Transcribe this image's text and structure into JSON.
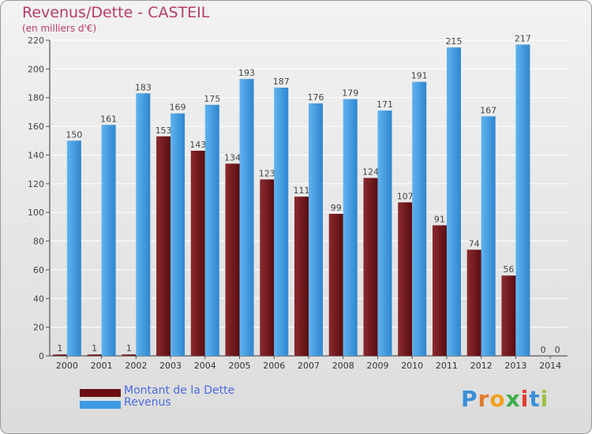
{
  "header": {
    "title": "Revenus/Dette - CASTEIL",
    "subtitle": "(en milliers d'€)"
  },
  "chart_data": {
    "type": "bar",
    "categories": [
      "2000",
      "2001",
      "2002",
      "2003",
      "2004",
      "2005",
      "2006",
      "2007",
      "2008",
      "2009",
      "2010",
      "2011",
      "2012",
      "2013",
      "2014"
    ],
    "series": [
      {
        "name": "Montant de la Dette",
        "values": [
          1,
          1,
          1,
          153,
          143,
          134,
          123,
          111,
          99,
          124,
          107,
          91,
          74,
          56,
          0
        ],
        "color": "#7a1f24"
      },
      {
        "name": "Revenus",
        "values": [
          150,
          161,
          183,
          169,
          175,
          193,
          187,
          176,
          179,
          171,
          191,
          215,
          167,
          217,
          0
        ],
        "color": "#4da6e8"
      }
    ],
    "ylim": [
      0,
      220
    ],
    "yticks": [
      0,
      20,
      40,
      60,
      80,
      100,
      120,
      140,
      160,
      180,
      200,
      220
    ],
    "grid": true,
    "legend_position": "bottom-left"
  },
  "legend": {
    "items": [
      {
        "label": "Montant de la Dette",
        "color": "#6b0f12"
      },
      {
        "label": "Revenus",
        "color": "#3d9be3"
      }
    ]
  },
  "logo": {
    "letters": [
      "P",
      "r",
      "o",
      "x",
      "i",
      "t",
      "i"
    ],
    "colors": [
      "#3b8fd8",
      "#e07b2a",
      "#f0a020",
      "#3cae49",
      "#e53b2f",
      "#3b8fd8",
      "#9bc33d"
    ]
  }
}
